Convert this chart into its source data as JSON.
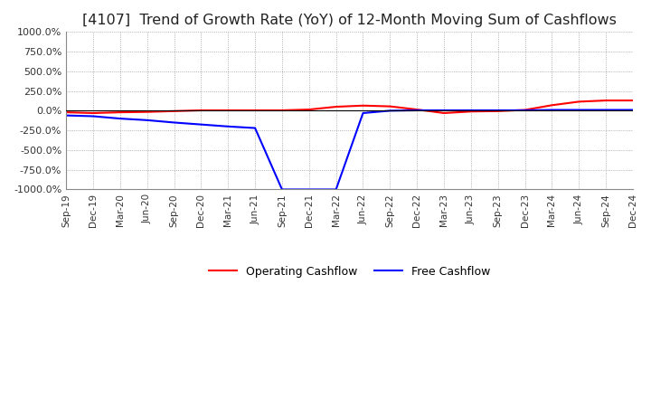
{
  "title": "[4107]  Trend of Growth Rate (YoY) of 12-Month Moving Sum of Cashflows",
  "title_fontsize": 11.5,
  "ylim": [
    -1000,
    1000
  ],
  "yticks": [
    1000,
    750,
    500,
    250,
    0,
    -250,
    -500,
    -750,
    -1000
  ],
  "ytick_labels": [
    "1000.0%",
    "750.0%",
    "500.0%",
    "250.0%",
    "0.0%",
    "-250.0%",
    "-500.0%",
    "-750.0%",
    "-1000.0%"
  ],
  "x_labels": [
    "Sep-19",
    "Dec-19",
    "Mar-20",
    "Jun-20",
    "Sep-20",
    "Dec-20",
    "Mar-21",
    "Jun-21",
    "Sep-21",
    "Dec-21",
    "Mar-22",
    "Jun-22",
    "Sep-22",
    "Dec-22",
    "Mar-23",
    "Jun-23",
    "Sep-23",
    "Dec-23",
    "Mar-24",
    "Jun-24",
    "Sep-24",
    "Dec-24"
  ],
  "operating_cashflow": [
    -20,
    -30,
    -20,
    -15,
    -5,
    5,
    5,
    5,
    5,
    15,
    50,
    65,
    55,
    15,
    -30,
    -10,
    -5,
    10,
    70,
    115,
    130,
    130
  ],
  "free_cashflow": [
    -60,
    -70,
    -100,
    -120,
    -150,
    -175,
    -200,
    -220,
    -1000,
    -1000,
    -1000,
    -30,
    0,
    5,
    5,
    5,
    5,
    5,
    10,
    10,
    10,
    10
  ],
  "operating_color": "#ff0000",
  "free_color": "#0000ff",
  "background_color": "#ffffff",
  "grid_color": "#999999",
  "line_width": 1.5,
  "legend_labels": [
    "Operating Cashflow",
    "Free Cashflow"
  ]
}
